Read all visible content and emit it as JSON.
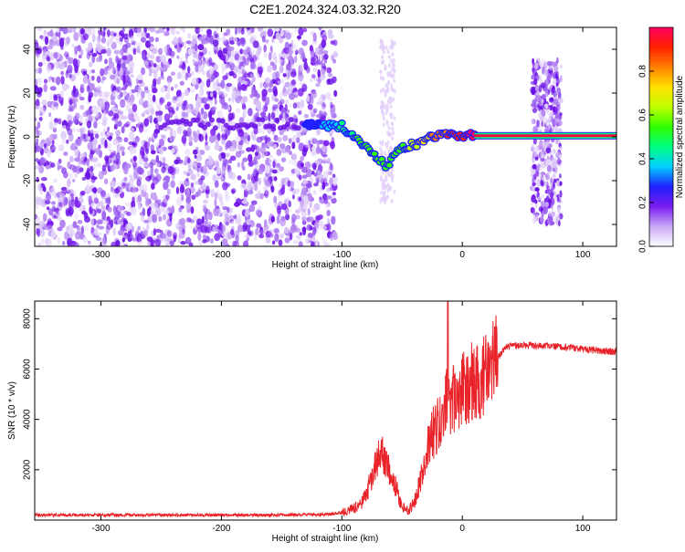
{
  "page_title": "C2E1.2024.324.03.32.R20",
  "chart_data": [
    {
      "type": "heatmap",
      "title": "",
      "xlabel": "Height of straight line (km)",
      "ylabel": "Frequency (Hz)",
      "xlim": [
        -355,
        128
      ],
      "ylim": [
        -50,
        50
      ],
      "x_ticks": [
        -300,
        -200,
        -100,
        0,
        100
      ],
      "y_ticks": [
        -40,
        -20,
        0,
        20,
        40
      ],
      "grid": false,
      "colorbar": {
        "label": "Normalized spectral amplitude",
        "range": [
          0,
          1
        ],
        "ticks": [
          0.0,
          0.2,
          0.4,
          0.6,
          0.8
        ],
        "colors": [
          "#ffffff",
          "#c9a8f5",
          "#7a1cf0",
          "#2020ff",
          "#00d0ff",
          "#00ff80",
          "#30ff00",
          "#c0ff00",
          "#ffe000",
          "#ff8000",
          "#ff2000",
          "#ff0060"
        ]
      },
      "signal_track": [
        {
          "x": -130,
          "y": 6,
          "amp": 0.25
        },
        {
          "x": -110,
          "y": 5,
          "amp": 0.35
        },
        {
          "x": -100,
          "y": 5,
          "amp": 0.45
        },
        {
          "x": -90,
          "y": 0,
          "amp": 0.5
        },
        {
          "x": -80,
          "y": -4,
          "amp": 0.55
        },
        {
          "x": -70,
          "y": -10,
          "amp": 0.55
        },
        {
          "x": -62,
          "y": -14,
          "amp": 0.5
        },
        {
          "x": -55,
          "y": -6,
          "amp": 0.55
        },
        {
          "x": -45,
          "y": -4,
          "amp": 0.6
        },
        {
          "x": -35,
          "y": -3,
          "amp": 0.7
        },
        {
          "x": -25,
          "y": 0,
          "amp": 0.8
        },
        {
          "x": -15,
          "y": 1,
          "amp": 0.85
        },
        {
          "x": -5,
          "y": 1,
          "amp": 0.9
        },
        {
          "x": 10,
          "y": 0.5,
          "amp": 1.0
        },
        {
          "x": 60,
          "y": 0.5,
          "amp": 1.0
        },
        {
          "x": 128,
          "y": 0.5,
          "amp": 1.0
        }
      ]
    },
    {
      "type": "line",
      "title": "",
      "xlabel": "Height of straight line (km)",
      "ylabel": "SNR (10 * v/v)",
      "xlim": [
        -355,
        128
      ],
      "ylim": [
        0,
        8700
      ],
      "x_ticks": [
        -300,
        -200,
        -100,
        0,
        100
      ],
      "y_ticks": [
        2000,
        4000,
        6000,
        8000
      ],
      "grid": false,
      "color": "#e8242a",
      "series": [
        {
          "x": [
            -355,
            -250,
            -150,
            -110,
            -95,
            -85,
            -80,
            -75,
            -70,
            -66,
            -63,
            -60,
            -55,
            -50,
            -45,
            -40,
            -35,
            -30,
            -25,
            -20,
            -15,
            -12,
            -10,
            -5,
            0,
            5,
            10,
            15,
            20,
            25,
            30,
            35,
            40,
            50,
            60,
            70,
            80,
            90,
            100,
            110,
            120,
            128
          ],
          "y": [
            200,
            200,
            200,
            230,
            350,
            600,
            1000,
            1700,
            2400,
            2600,
            2200,
            2000,
            1300,
            500,
            350,
            700,
            1500,
            2800,
            3400,
            3800,
            4200,
            5000,
            4600,
            4900,
            5200,
            5400,
            5500,
            5600,
            5800,
            6100,
            6500,
            6800,
            6900,
            6950,
            6950,
            6900,
            6900,
            6850,
            6800,
            6750,
            6700,
            6700
          ]
        }
      ],
      "spike": {
        "x": -12,
        "y": 8700
      }
    }
  ]
}
